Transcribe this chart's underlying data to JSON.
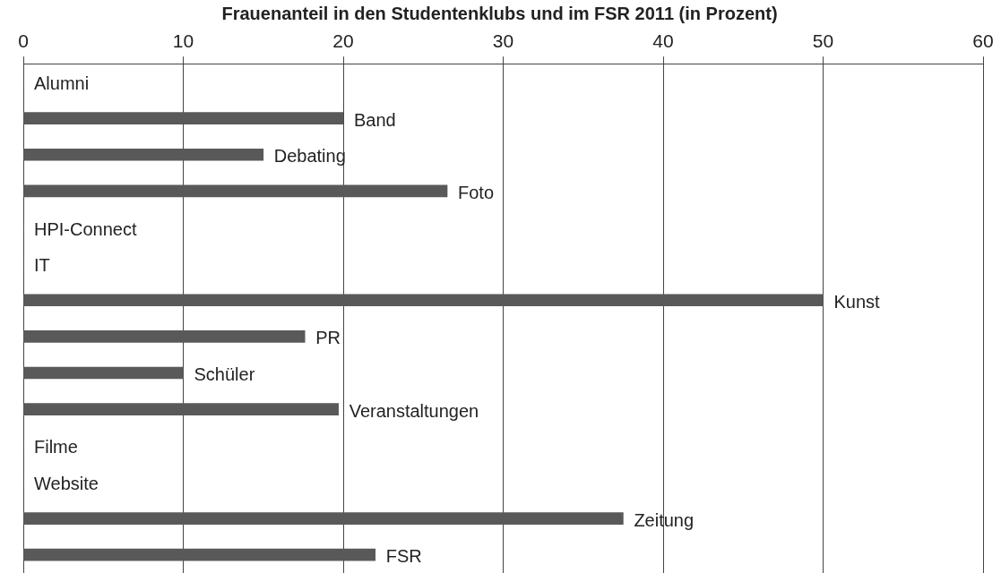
{
  "chart_data": {
    "type": "bar",
    "orientation": "horizontal",
    "title": "Frauenanteil in den Studentenklubs und im FSR 2011 (in Prozent)",
    "categories": [
      "Alumni",
      "Band",
      "Debating",
      "Foto",
      "HPI-Connect",
      "IT",
      "Kunst",
      "PR",
      "Schüler",
      "Veranstaltungen",
      "Filme",
      "Website",
      "Zeitung",
      "FSR"
    ],
    "values": [
      0,
      20,
      15,
      26.5,
      0,
      0,
      50,
      17.6,
      10,
      19.7,
      0,
      0,
      37.5,
      22
    ],
    "color": "#595959",
    "xlim": [
      0,
      60
    ],
    "xticks": [
      0,
      10,
      20,
      30,
      40,
      50,
      60
    ],
    "grid": "x",
    "legend": false
  }
}
